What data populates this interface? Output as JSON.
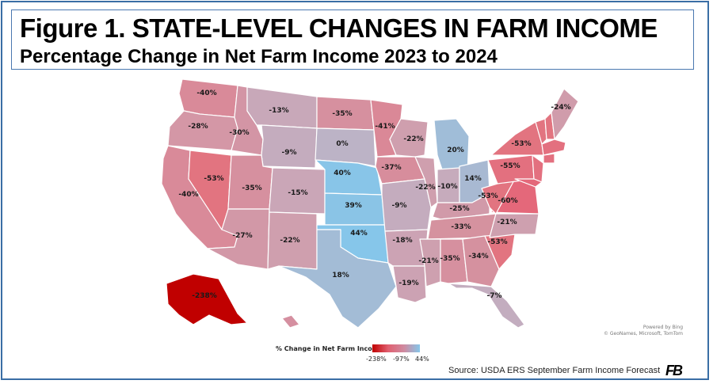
{
  "title": "Figure 1. STATE-LEVEL CHANGES IN FARM INCOME",
  "subtitle": "Percentage Change in Net Farm Income 2023 to 2024",
  "legend": {
    "title": "% Change in Net Farm Income",
    "min_label": "-238%",
    "mid_label": "-97%",
    "max_label": "44%"
  },
  "colors": {
    "low": "#c00000",
    "mid": "#e06070",
    "neutral": "#c9a7b7",
    "high": "#86c6ea",
    "frame": "#3a6ea5"
  },
  "states": [
    {
      "name": "WA",
      "value": "-40%",
      "fill": "#d98a99"
    },
    {
      "name": "OR",
      "value": "-28%",
      "fill": "#d497a6"
    },
    {
      "name": "CA",
      "value": "-40%",
      "fill": "#d98a99"
    },
    {
      "name": "NV",
      "value": "-53%",
      "fill": "#e27480"
    },
    {
      "name": "ID",
      "value": "-30%",
      "fill": "#d395a5"
    },
    {
      "name": "MT",
      "value": "-13%",
      "fill": "#c8a8b9"
    },
    {
      "name": "WY",
      "value": "-9%",
      "fill": "#c4acbe"
    },
    {
      "name": "UT",
      "value": "-35%",
      "fill": "#d6909f"
    },
    {
      "name": "AZ",
      "value": "-27%",
      "fill": "#d298a7"
    },
    {
      "name": "CO",
      "value": "-15%",
      "fill": "#caa6b7"
    },
    {
      "name": "NM",
      "value": "-22%",
      "fill": "#cf9fae"
    },
    {
      "name": "ND",
      "value": "-35%",
      "fill": "#d6909f"
    },
    {
      "name": "SD",
      "value": "0%",
      "fill": "#bcb3c6"
    },
    {
      "name": "NE",
      "value": "40%",
      "fill": "#88c5e8"
    },
    {
      "name": "KS",
      "value": "39%",
      "fill": "#8ac4e6"
    },
    {
      "name": "OK",
      "value": "44%",
      "fill": "#86c6ea"
    },
    {
      "name": "TX",
      "value": "18%",
      "fill": "#a3bcd6"
    },
    {
      "name": "MN",
      "value": "-41%",
      "fill": "#da8897"
    },
    {
      "name": "IA",
      "value": "-37%",
      "fill": "#d78d9c"
    },
    {
      "name": "MO",
      "value": "-9%",
      "fill": "#c4acbe"
    },
    {
      "name": "AR",
      "value": "-18%",
      "fill": "#cca3b4"
    },
    {
      "name": "LA",
      "value": "-19%",
      "fill": "#cca2b3"
    },
    {
      "name": "WI",
      "value": "-22%",
      "fill": "#cf9fae"
    },
    {
      "name": "IL",
      "value": "-22%",
      "fill": "#cf9fae"
    },
    {
      "name": "MI",
      "value": "20%",
      "fill": "#a0bdd8"
    },
    {
      "name": "IN",
      "value": "-10%",
      "fill": "#c6abbc"
    },
    {
      "name": "OH",
      "value": "14%",
      "fill": "#a8b9d2"
    },
    {
      "name": "KY",
      "value": "-25%",
      "fill": "#d19aa9"
    },
    {
      "name": "TN",
      "value": "-33%",
      "fill": "#d5929f"
    },
    {
      "name": "MS",
      "value": "-21%",
      "fill": "#cea0af"
    },
    {
      "name": "AL",
      "value": "-35%",
      "fill": "#d6909f"
    },
    {
      "name": "GA",
      "value": "-34%",
      "fill": "#d5919f"
    },
    {
      "name": "FL",
      "value": "-7%",
      "fill": "#c3adbf"
    },
    {
      "name": "SC",
      "value": "-53%",
      "fill": "#e27480"
    },
    {
      "name": "NC",
      "value": "-21%",
      "fill": "#cea0af"
    },
    {
      "name": "VA",
      "value": "-60%",
      "fill": "#e4687a"
    },
    {
      "name": "WV",
      "value": "-53%",
      "fill": "#e27480"
    },
    {
      "name": "PA",
      "value": "-55%",
      "fill": "#e3707f"
    },
    {
      "name": "NY",
      "value": "-53%",
      "fill": "#e27480"
    },
    {
      "name": "ME",
      "value": "-24%",
      "fill": "#d09cab"
    },
    {
      "name": "AK",
      "value": "-238%",
      "fill": "#c00000"
    },
    {
      "name": "HI",
      "value": "",
      "fill": "#d58fa0"
    }
  ],
  "attribution": {
    "line1": "Powered by Bing",
    "line2": "© GeoNames, Microsoft, TomTom"
  },
  "source": "Source: USDA ERS September Farm Income Forecast",
  "logo": "FB"
}
